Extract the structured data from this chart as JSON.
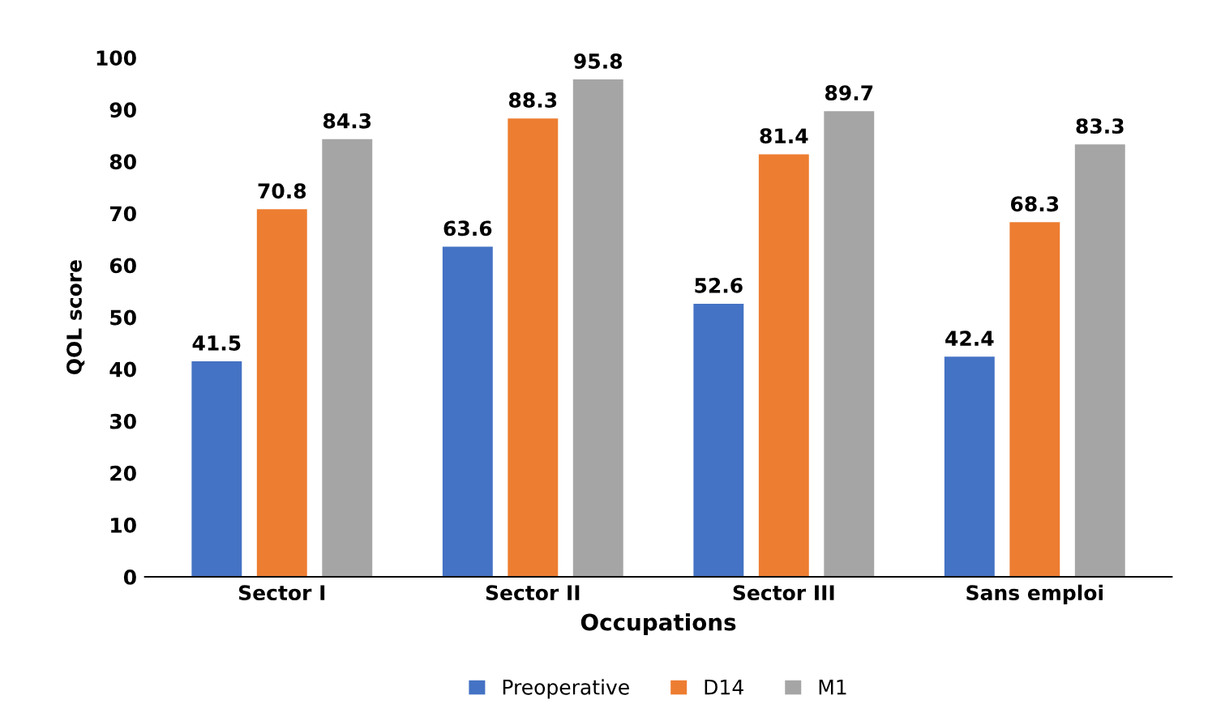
{
  "chart_data": {
    "type": "bar",
    "xlabel": "Occupations",
    "ylabel": "QOL score",
    "categories": [
      "Sector I",
      "Sector II",
      "Sector III",
      "Sans emploi"
    ],
    "series": [
      {
        "name": "Preoperative",
        "color": "#4472c4",
        "values": [
          41.5,
          63.6,
          52.6,
          42.4
        ]
      },
      {
        "name": "D14",
        "color": "#ed7d31",
        "values": [
          70.8,
          88.3,
          81.4,
          68.3
        ]
      },
      {
        "name": "M1",
        "color": "#a5a5a5",
        "values": [
          84.3,
          95.8,
          89.7,
          83.3
        ]
      }
    ],
    "ylim": [
      0,
      100
    ],
    "yticks": [
      0,
      10,
      20,
      30,
      40,
      50,
      60,
      70,
      80,
      90,
      100
    ],
    "grid": false,
    "legend": "bottom",
    "data_labels": true
  }
}
